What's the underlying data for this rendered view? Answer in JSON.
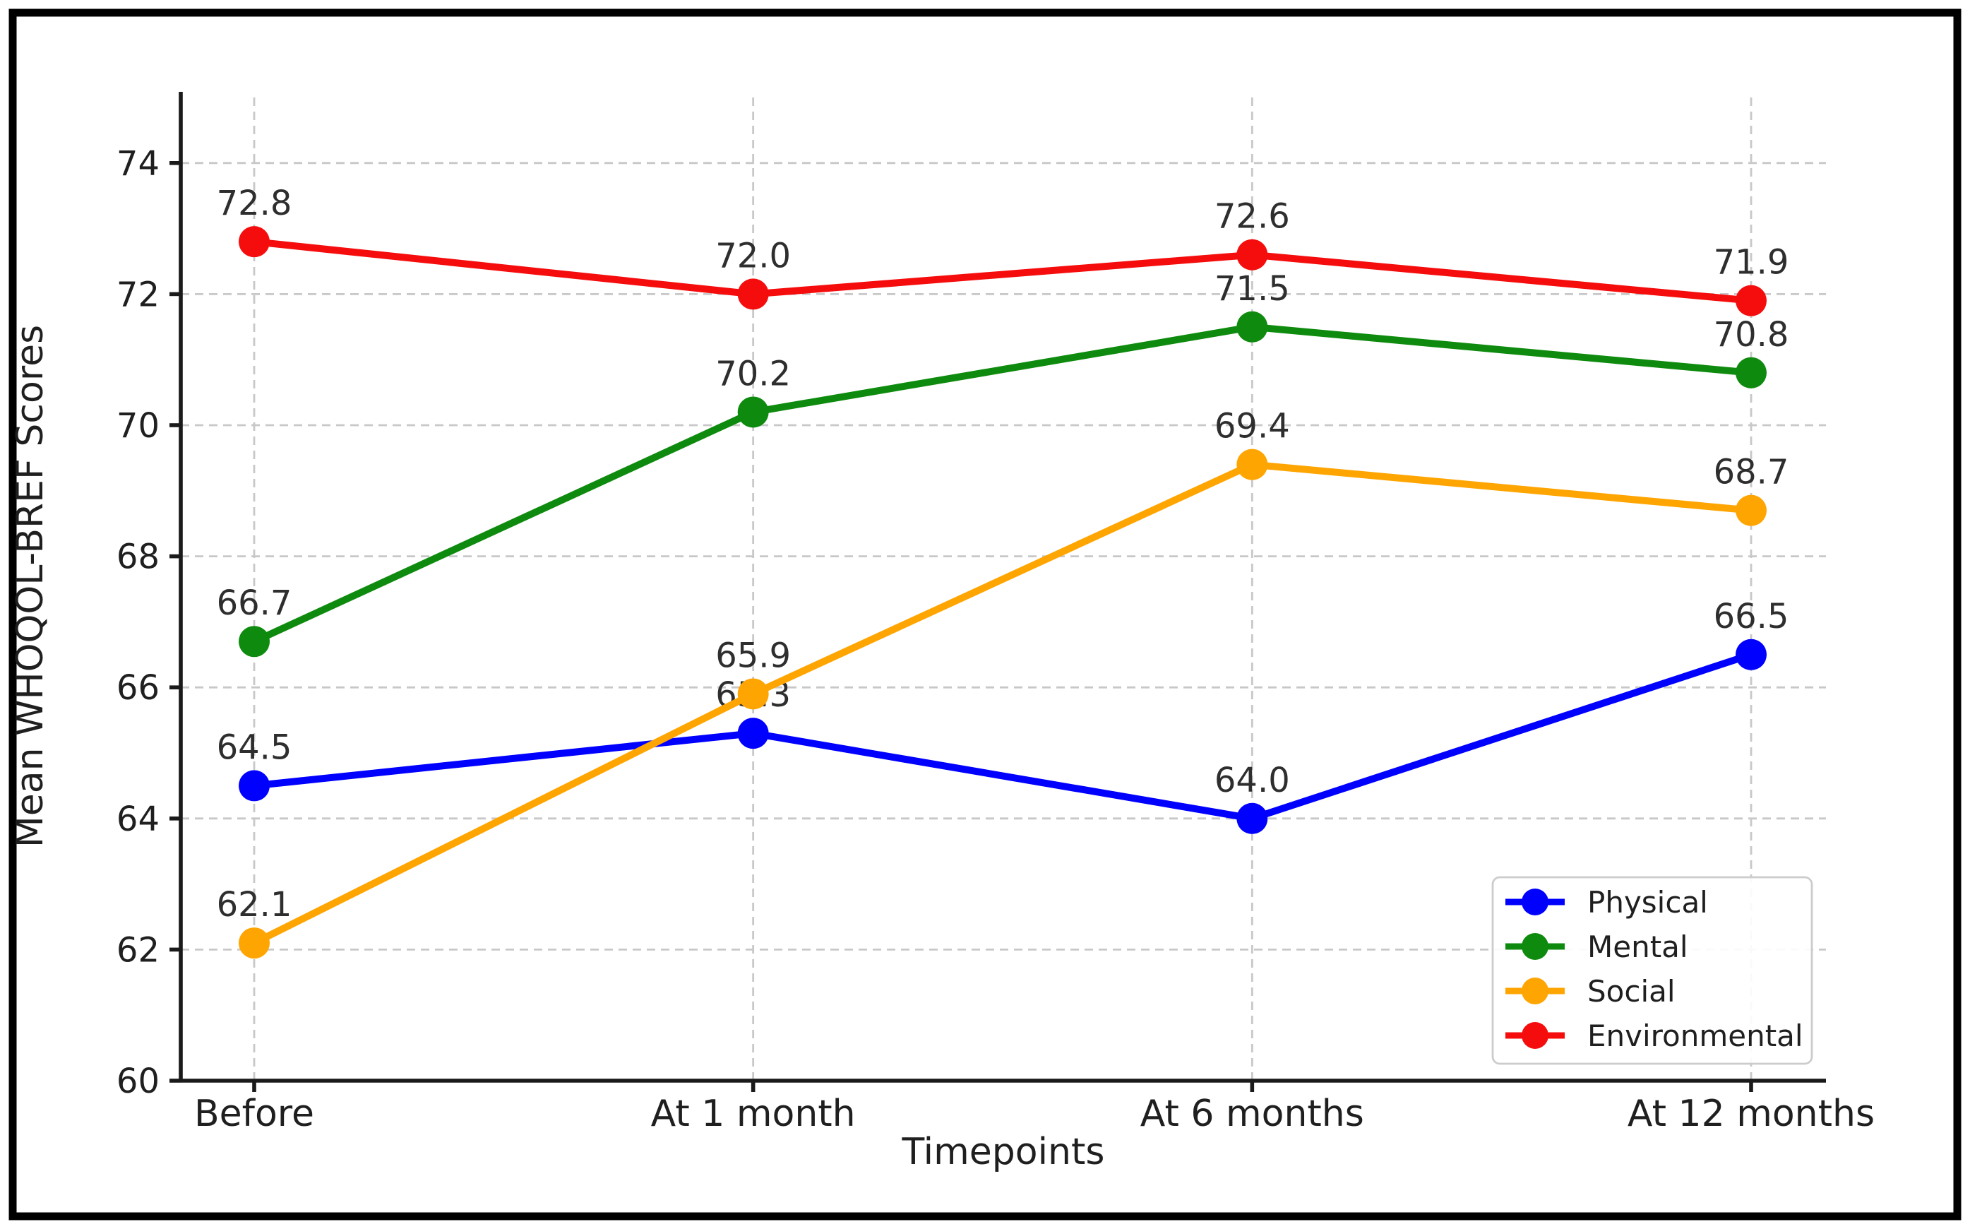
{
  "figure": {
    "background": "#ffffff",
    "frame_color": "#000000",
    "text_color": "#1f1f1f",
    "data_label_color": "#2e2e2e",
    "grid_color": "#c8c8c8"
  },
  "chart_data": {
    "type": "line",
    "categories": [
      "Before",
      "At 1 month",
      "At 6 months",
      "At 12 months"
    ],
    "series": [
      {
        "name": "Physical",
        "color": "#0000ff",
        "values": [
          64.5,
          65.3,
          64.0,
          66.5
        ],
        "labels": [
          "64.5",
          "65.3",
          "64.0",
          "66.5"
        ]
      },
      {
        "name": "Mental",
        "color": "#0e8b0e",
        "values": [
          66.7,
          70.2,
          71.5,
          70.8
        ],
        "labels": [
          "66.7",
          "70.2",
          "71.5",
          "70.8"
        ]
      },
      {
        "name": "Social",
        "color": "#ffa502",
        "values": [
          62.1,
          65.9,
          69.4,
          68.7
        ],
        "labels": [
          "62.1",
          "65.9",
          "69.4",
          "68.7"
        ]
      },
      {
        "name": "Environmental",
        "color": "#f50d0d",
        "values": [
          72.8,
          72.0,
          72.6,
          71.9
        ],
        "labels": [
          "72.8",
          "72.0",
          "72.6",
          "71.9"
        ]
      }
    ],
    "xlabel": "Timepoints",
    "ylabel": "Mean WHOQOL-BREF Scores",
    "ylim": [
      60,
      75.1
    ],
    "yticks": [
      60,
      62,
      64,
      66,
      68,
      70,
      72,
      74
    ],
    "grid": true,
    "grid_style": "dashed",
    "marker": "circle",
    "data_labels": true,
    "legend": {
      "position": "lower right"
    }
  }
}
